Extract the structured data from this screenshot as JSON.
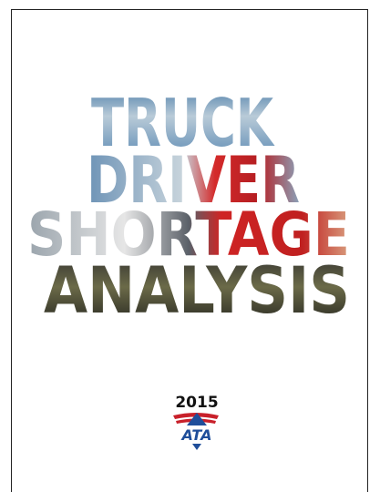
{
  "cover": {
    "title_lines": [
      "TRUCK",
      "DRIVER",
      "SHORTAGE",
      "ANALYSIS"
    ],
    "year": "2015",
    "logo": "ATA"
  }
}
